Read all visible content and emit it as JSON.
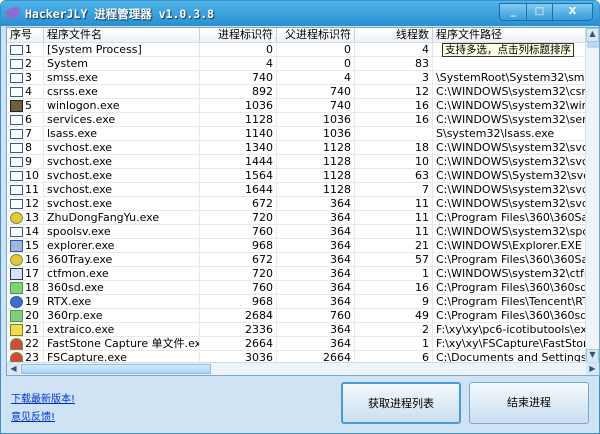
{
  "window": {
    "title": "HackerJLY 进程管理器 v1.0.3.8",
    "minimize": "_",
    "maximize": "□",
    "close": "X"
  },
  "columns": [
    "序号",
    "程序文件名",
    "进程标识符",
    "父进程标识符",
    "线程数",
    "程序文件路径"
  ],
  "rows": [
    [
      "1",
      "[System Process]",
      "0",
      "0",
      "4",
      "",
      "app"
    ],
    [
      "2",
      "System",
      "4",
      "0",
      "83",
      "",
      "app"
    ],
    [
      "3",
      "smss.exe",
      "740",
      "4",
      "3",
      "\\SystemRoot\\System32\\smss.exe",
      "app"
    ],
    [
      "4",
      "csrss.exe",
      "892",
      "740",
      "12",
      "C:\\WINDOWS\\system32\\csrss.exe",
      "app"
    ],
    [
      "5",
      "winlogon.exe",
      "1036",
      "740",
      "16",
      "C:\\WINDOWS\\system32\\winlogon.",
      "l"
    ],
    [
      "6",
      "services.exe",
      "1128",
      "1036",
      "16",
      "C:\\WINDOWS\\system32\\services.e",
      "app"
    ],
    [
      "7",
      "lsass.exe",
      "1140",
      "1036",
      "",
      "S\\system32\\lsass.exe",
      "app"
    ],
    [
      "8",
      "svchost.exe",
      "1340",
      "1128",
      "18",
      "C:\\WINDOWS\\system32\\svchost.e:",
      "app"
    ],
    [
      "9",
      "svchost.exe",
      "1444",
      "1128",
      "10",
      "C:\\WINDOWS\\system32\\svchost.e:",
      "app"
    ],
    [
      "10",
      "svchost.exe",
      "1564",
      "1128",
      "63",
      "C:\\WINDOWS\\System32\\svchost.e",
      "app"
    ],
    [
      "11",
      "svchost.exe",
      "1644",
      "1128",
      "7",
      "C:\\WINDOWS\\system32\\svchost.e:",
      "app"
    ],
    [
      "12",
      "svchost.exe",
      "672",
      "364",
      "11",
      "C:\\WINDOWS\\system32\\svchost.e:",
      "app"
    ],
    [
      "13",
      "ZhuDongFangYu.exe",
      "720",
      "364",
      "11",
      "C:\\Program Files\\360\\360Safe\\deep",
      "g"
    ],
    [
      "14",
      "spoolsv.exe",
      "760",
      "364",
      "11",
      "C:\\WINDOWS\\system32\\spoolsv.ex",
      "app"
    ],
    [
      "15",
      "explorer.exe",
      "968",
      "364",
      "21",
      "C:\\WINDOWS\\Explorer.EXE",
      "w"
    ],
    [
      "16",
      "360Tray.exe",
      "672",
      "364",
      "57",
      "C:\\Program Files\\360\\360Safe\\safe",
      "g"
    ],
    [
      "17",
      "ctfmon.exe",
      "720",
      "364",
      "1",
      "C:\\WINDOWS\\system32\\ctfmon.ex",
      "p"
    ],
    [
      "18",
      "360sd.exe",
      "760",
      "364",
      "16",
      "C:\\Program Files\\360\\360sd\\360sd.",
      "s"
    ],
    [
      "19",
      "RTX.exe",
      "968",
      "364",
      "9",
      "C:\\Program Files\\Tencent\\RTXC\\RT",
      "b"
    ],
    [
      "20",
      "360rp.exe",
      "2684",
      "760",
      "49",
      "C:\\Program Files\\360\\360sd\\360rp.",
      "s"
    ],
    [
      "21",
      "extraico.exe",
      "2336",
      "364",
      "2",
      "F:\\xy\\xy\\pc6-icotibutools\\extraico.e",
      "y"
    ],
    [
      "22",
      "FastStone Capture 单文件.exe",
      "2664",
      "364",
      "1",
      "F:\\xy\\xy\\FSCapture\\FastStone Capt",
      "r"
    ],
    [
      "23",
      "FSCapture.exe",
      "3036",
      "2664",
      "6",
      "C:\\Documents and Settings\\Admini",
      "r"
    ]
  ],
  "tooltip": "支持多选，点击列标题排序",
  "links": {
    "download": "下载最新版本!",
    "feedback": "意见反馈!"
  },
  "buttons": {
    "refresh": "获取进程列表",
    "kill": "结束进程"
  }
}
